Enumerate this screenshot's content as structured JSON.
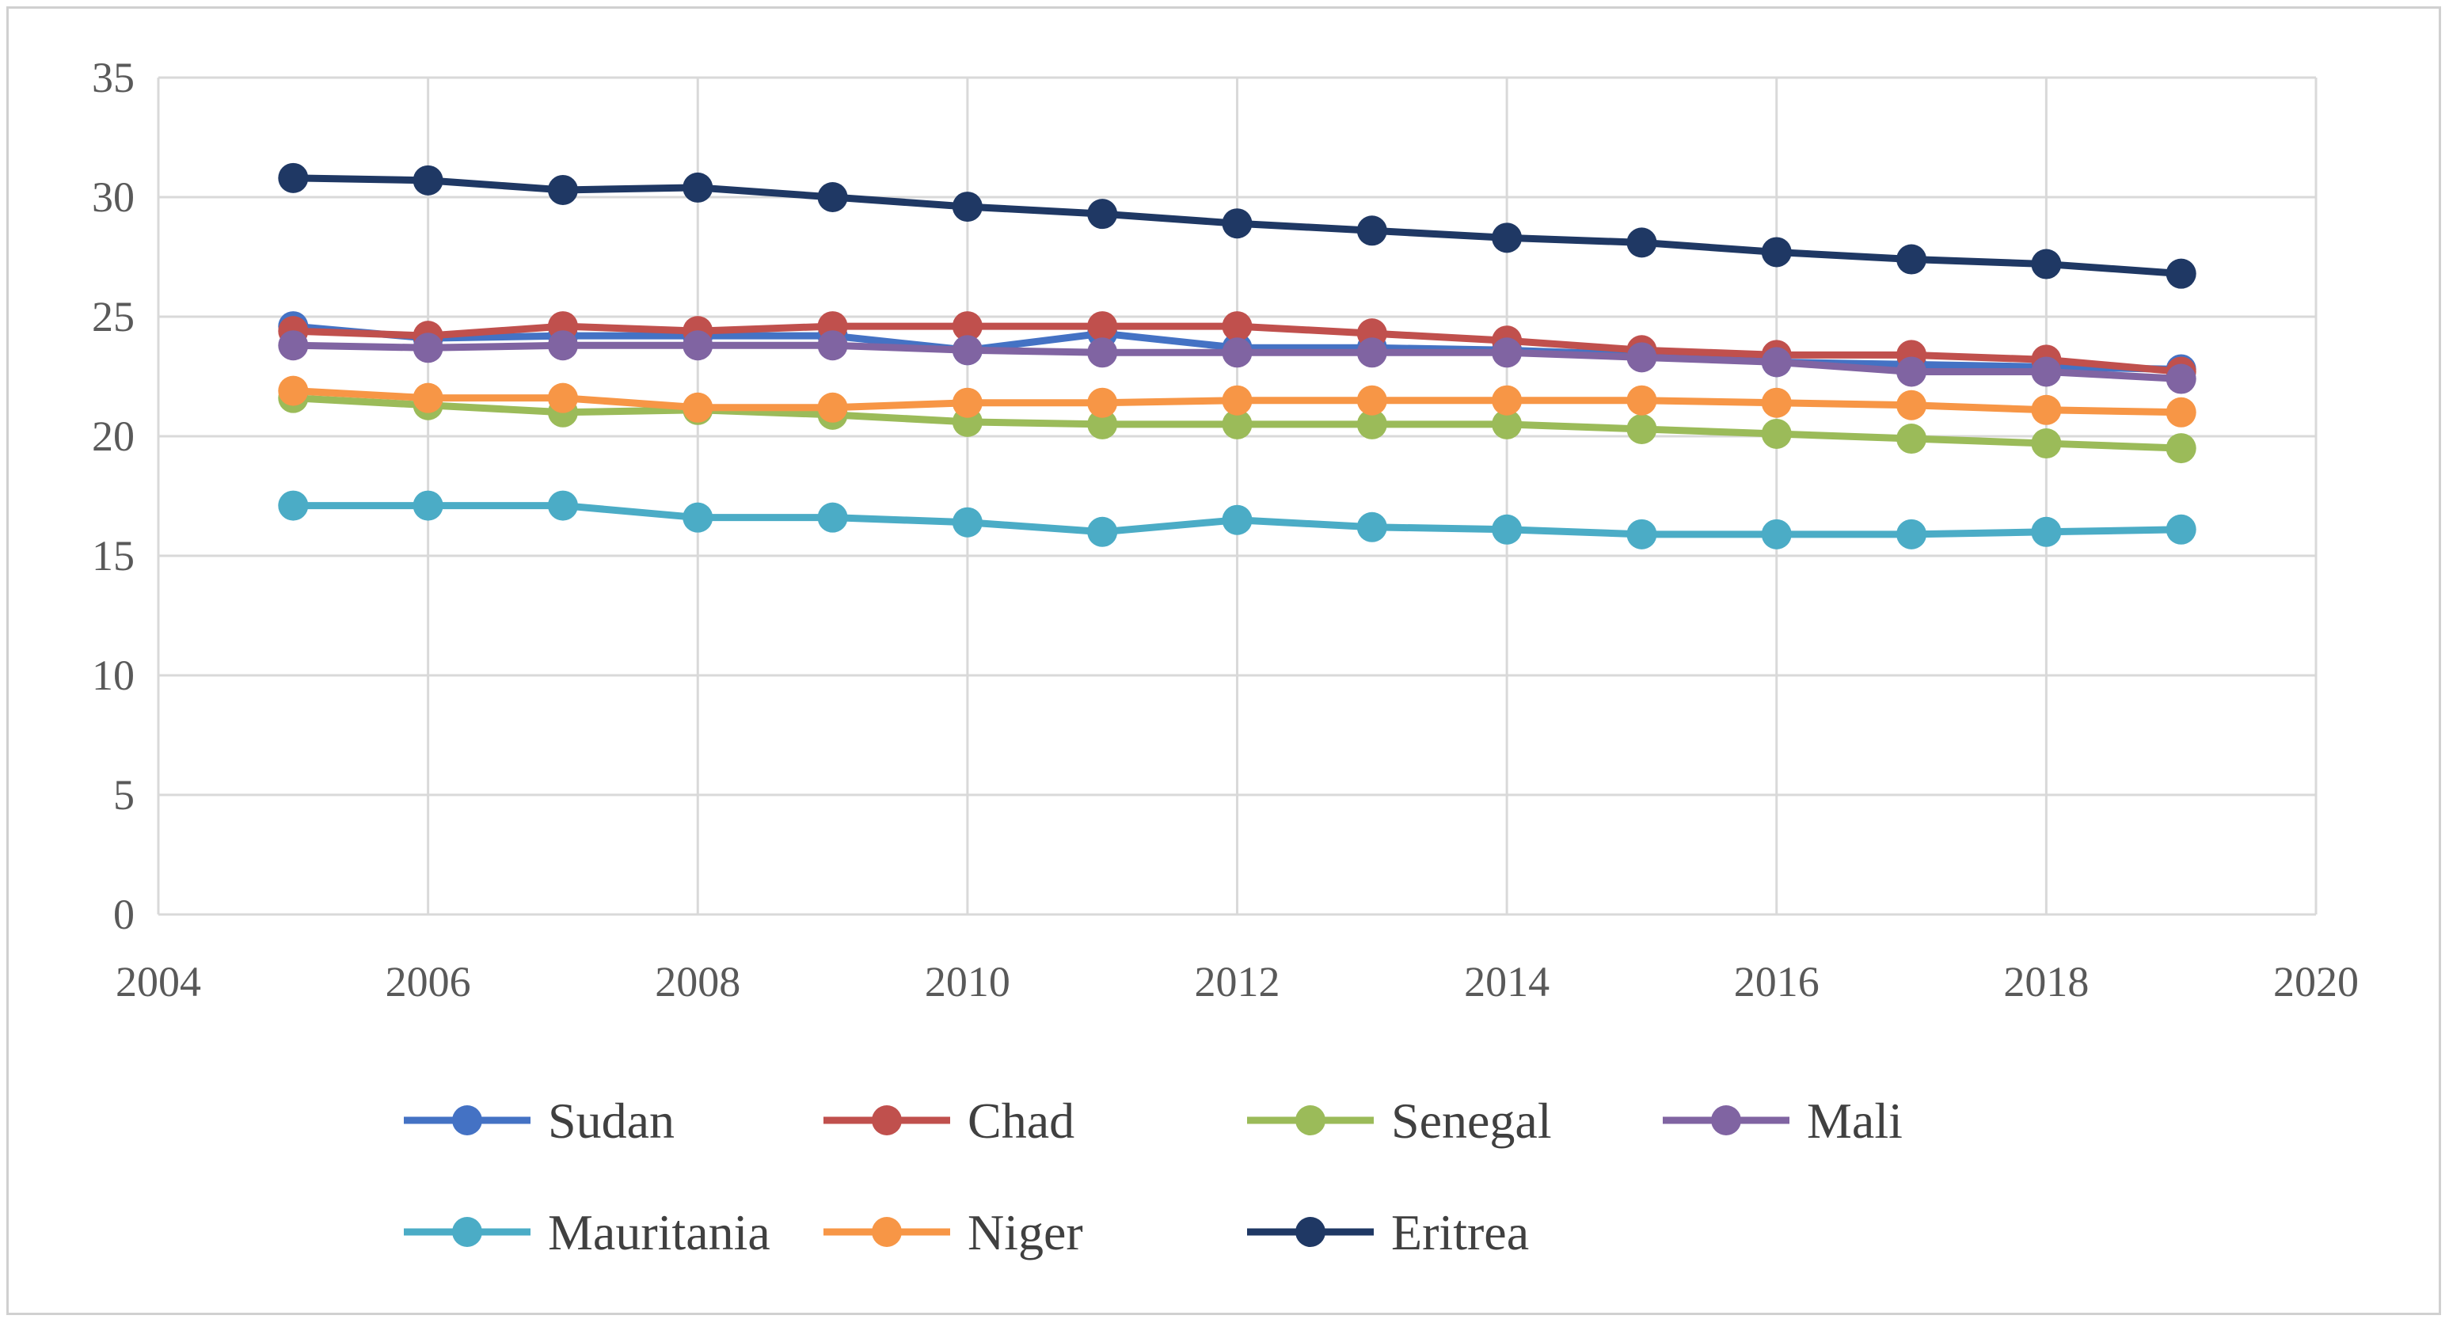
{
  "chart_data": {
    "type": "line",
    "title": "",
    "xlabel": "",
    "ylabel": "",
    "xlim": [
      2004,
      2020
    ],
    "ylim": [
      0,
      35
    ],
    "x_ticks": [
      2004,
      2006,
      2008,
      2010,
      2012,
      2014,
      2016,
      2018,
      2020
    ],
    "y_ticks": [
      0,
      5,
      10,
      15,
      20,
      25,
      30,
      35
    ],
    "grid": true,
    "legend_position": "bottom",
    "x": [
      2005,
      2006,
      2007,
      2008,
      2009,
      2010,
      2011,
      2012,
      2013,
      2014,
      2015,
      2016,
      2017,
      2018,
      2019
    ],
    "series": [
      {
        "name": "Sudan",
        "color": "#4472C4",
        "values": [
          24.6,
          24.1,
          24.2,
          24.2,
          24.2,
          23.6,
          24.3,
          23.7,
          23.7,
          23.6,
          23.4,
          23.1,
          23.0,
          22.9,
          22.8
        ]
      },
      {
        "name": "Chad",
        "color": "#C0504D",
        "values": [
          24.4,
          24.2,
          24.6,
          24.4,
          24.6,
          24.6,
          24.6,
          24.6,
          24.3,
          24.0,
          23.6,
          23.4,
          23.4,
          23.2,
          22.7
        ]
      },
      {
        "name": "Senegal",
        "color": "#9BBB59",
        "values": [
          21.6,
          21.3,
          21.0,
          21.1,
          20.9,
          20.6,
          20.5,
          20.5,
          20.5,
          20.5,
          20.3,
          20.1,
          19.9,
          19.7,
          19.5
        ]
      },
      {
        "name": "Mali",
        "color": "#8064A2",
        "values": [
          23.8,
          23.7,
          23.8,
          23.8,
          23.8,
          23.6,
          23.5,
          23.5,
          23.5,
          23.5,
          23.3,
          23.1,
          22.7,
          22.7,
          22.4
        ]
      },
      {
        "name": "Mauritania",
        "color": "#4BACC6",
        "values": [
          17.1,
          17.1,
          17.1,
          16.6,
          16.6,
          16.4,
          16.0,
          16.5,
          16.2,
          16.1,
          15.9,
          15.9,
          15.9,
          16.0,
          16.1
        ]
      },
      {
        "name": "Niger",
        "color": "#F79646",
        "values": [
          21.9,
          21.6,
          21.6,
          21.2,
          21.2,
          21.4,
          21.4,
          21.5,
          21.5,
          21.5,
          21.5,
          21.4,
          21.3,
          21.1,
          21.0
        ]
      },
      {
        "name": "Eritrea",
        "color": "#1F3864",
        "values": [
          30.8,
          30.7,
          30.3,
          30.4,
          30.0,
          29.6,
          29.3,
          28.9,
          28.6,
          28.3,
          28.1,
          27.7,
          27.4,
          27.2,
          26.8
        ]
      }
    ]
  }
}
